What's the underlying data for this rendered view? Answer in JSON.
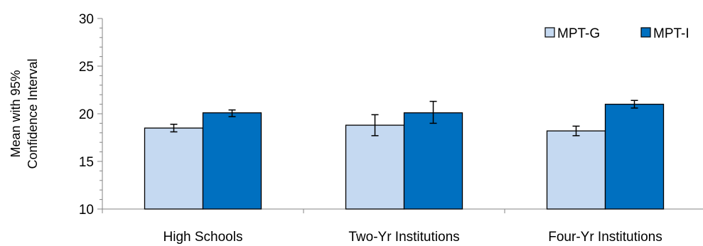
{
  "chart_data": {
    "type": "bar",
    "categories": [
      "High Schools",
      "Two-Yr Institutions",
      "Four-Yr Institutions"
    ],
    "series": [
      {
        "name": "MPT-G",
        "values": [
          18.5,
          18.8,
          18.2
        ],
        "ci_low": [
          18.1,
          17.7,
          17.7
        ],
        "ci_high": [
          18.9,
          19.9,
          18.7
        ],
        "color": "#c5d9f1"
      },
      {
        "name": "MPT-I",
        "values": [
          20.1,
          20.1,
          21.0
        ],
        "ci_low": [
          19.7,
          19.0,
          20.6
        ],
        "ci_high": [
          20.4,
          21.3,
          21.4
        ],
        "color": "#0070c0"
      }
    ],
    "ylabel_line1": "Mean with 95%",
    "ylabel_line2": "Confidence Interval",
    "ylim": [
      10,
      30
    ],
    "yticks": [
      10,
      15,
      20,
      25,
      30
    ],
    "legend_placement": "top-right",
    "grid": false
  }
}
